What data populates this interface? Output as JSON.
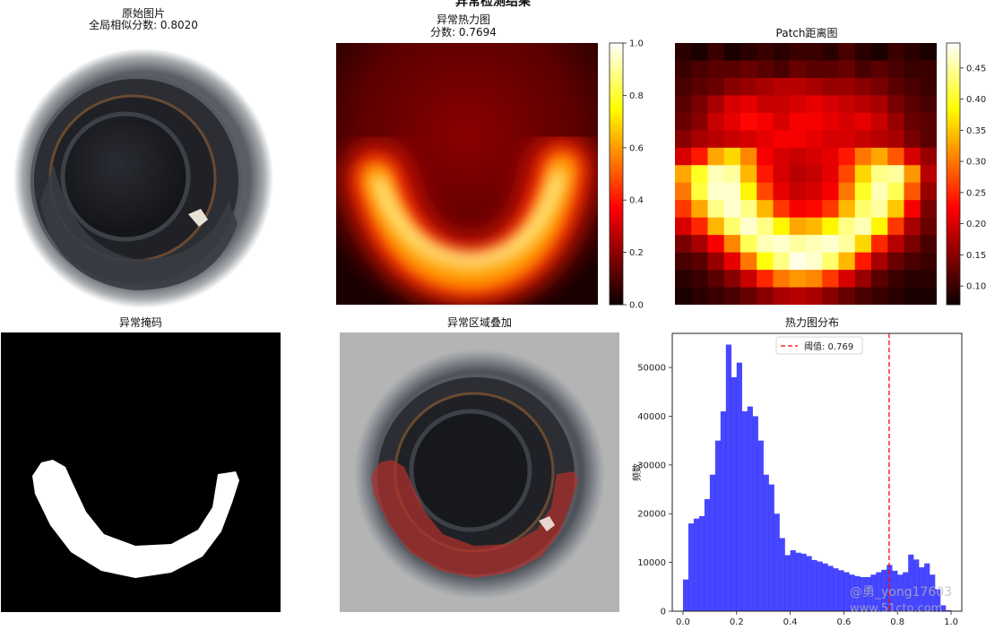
{
  "suptitle": "异常检测结果",
  "panels": {
    "original": {
      "title_line1": "原始图片",
      "title_line2": "全局相似分数: 0.8020"
    },
    "heatmap": {
      "title_line1": "异常热力图",
      "title_line2": "分数: 0.7694",
      "colorbar_ticks": [
        "0.0",
        "0.2",
        "0.4",
        "0.6",
        "0.8",
        "1.0"
      ]
    },
    "patch": {
      "title": "Patch距离图",
      "colorbar_ticks": [
        "0.10",
        "0.15",
        "0.20",
        "0.25",
        "0.30",
        "0.35",
        "0.40",
        "0.45"
      ]
    },
    "mask": {
      "title": "异常掩码"
    },
    "overlay": {
      "title": "异常区域叠加"
    },
    "hist": {
      "title": "热力图分布"
    }
  },
  "watermark": {
    "line1": "@勇_yong17603",
    "line2": "www.51cto.com"
  },
  "chart_data": [
    {
      "type": "heatmap",
      "title": "异常热力图",
      "subtitle": "分数: 0.7694",
      "colormap": "hot",
      "vmin": 0.0,
      "vmax": 1.0,
      "description_of_pattern": "U-shaped high anomaly band across lower half"
    },
    {
      "type": "heatmap",
      "title": "Patch距离图",
      "colormap": "hot",
      "vmin": 0.07,
      "vmax": 0.49,
      "grid": [
        [
          0.09,
          0.08,
          0.1,
          0.08,
          0.09,
          0.1,
          0.09,
          0.1,
          0.1,
          0.09,
          0.11,
          0.09,
          0.08,
          0.1,
          0.09,
          0.08
        ],
        [
          0.1,
          0.11,
          0.12,
          0.12,
          0.13,
          0.12,
          0.11,
          0.13,
          0.12,
          0.12,
          0.13,
          0.11,
          0.12,
          0.11,
          0.1,
          0.1
        ],
        [
          0.11,
          0.12,
          0.13,
          0.15,
          0.16,
          0.17,
          0.18,
          0.18,
          0.17,
          0.16,
          0.16,
          0.15,
          0.14,
          0.12,
          0.11,
          0.1
        ],
        [
          0.12,
          0.14,
          0.17,
          0.2,
          0.21,
          0.19,
          0.19,
          0.2,
          0.21,
          0.2,
          0.19,
          0.18,
          0.17,
          0.14,
          0.12,
          0.11
        ],
        [
          0.13,
          0.15,
          0.19,
          0.21,
          0.23,
          0.22,
          0.2,
          0.22,
          0.22,
          0.21,
          0.2,
          0.21,
          0.19,
          0.16,
          0.13,
          0.12
        ],
        [
          0.15,
          0.17,
          0.18,
          0.19,
          0.2,
          0.21,
          0.22,
          0.22,
          0.21,
          0.2,
          0.2,
          0.19,
          0.18,
          0.17,
          0.14,
          0.12
        ],
        [
          0.2,
          0.24,
          0.33,
          0.36,
          0.31,
          0.22,
          0.2,
          0.19,
          0.2,
          0.21,
          0.24,
          0.3,
          0.33,
          0.28,
          0.2,
          0.16
        ],
        [
          0.33,
          0.4,
          0.46,
          0.45,
          0.34,
          0.24,
          0.2,
          0.18,
          0.19,
          0.21,
          0.27,
          0.36,
          0.44,
          0.45,
          0.32,
          0.18
        ],
        [
          0.3,
          0.41,
          0.47,
          0.47,
          0.38,
          0.27,
          0.21,
          0.19,
          0.2,
          0.22,
          0.3,
          0.4,
          0.46,
          0.42,
          0.28,
          0.16
        ],
        [
          0.26,
          0.33,
          0.44,
          0.47,
          0.44,
          0.34,
          0.26,
          0.22,
          0.23,
          0.26,
          0.34,
          0.43,
          0.45,
          0.35,
          0.22,
          0.14
        ],
        [
          0.2,
          0.25,
          0.34,
          0.43,
          0.47,
          0.44,
          0.38,
          0.33,
          0.34,
          0.38,
          0.44,
          0.46,
          0.38,
          0.26,
          0.17,
          0.13
        ],
        [
          0.14,
          0.17,
          0.22,
          0.31,
          0.42,
          0.46,
          0.47,
          0.45,
          0.46,
          0.47,
          0.45,
          0.36,
          0.25,
          0.18,
          0.14,
          0.11
        ],
        [
          0.11,
          0.12,
          0.16,
          0.21,
          0.3,
          0.39,
          0.44,
          0.48,
          0.47,
          0.43,
          0.34,
          0.24,
          0.17,
          0.13,
          0.11,
          0.1
        ],
        [
          0.09,
          0.1,
          0.12,
          0.15,
          0.19,
          0.25,
          0.3,
          0.32,
          0.31,
          0.26,
          0.2,
          0.16,
          0.12,
          0.1,
          0.09,
          0.09
        ],
        [
          0.08,
          0.09,
          0.1,
          0.11,
          0.13,
          0.15,
          0.17,
          0.18,
          0.17,
          0.15,
          0.13,
          0.11,
          0.1,
          0.09,
          0.08,
          0.08
        ]
      ]
    },
    {
      "type": "bar",
      "title": "热力图分布",
      "ylabel": "频数",
      "xlabel": "",
      "xlim": [
        -0.04,
        1.04
      ],
      "ylim": [
        0,
        57000
      ],
      "x_ticks": [
        "0.0",
        "0.2",
        "0.4",
        "0.6",
        "0.8",
        "1.0"
      ],
      "y_ticks": [
        "0",
        "10000",
        "20000",
        "30000",
        "40000",
        "50000"
      ],
      "bin_width": 0.02,
      "bin_start": 0.0,
      "values": [
        6500,
        18000,
        19000,
        19500,
        23000,
        28000,
        35000,
        41000,
        54700,
        48000,
        51000,
        41000,
        42000,
        40000,
        35000,
        28000,
        26000,
        20000,
        15000,
        11500,
        12500,
        12000,
        11800,
        11300,
        10500,
        10200,
        9800,
        9300,
        8800,
        8400,
        8000,
        7500,
        7200,
        7000,
        7000,
        7500,
        8000,
        8500,
        9500,
        8300,
        7500,
        8000,
        11600,
        10600,
        9000,
        9800,
        7500,
        4500,
        1200,
        200
      ],
      "threshold": 0.769,
      "legend": "阈值: 0.769",
      "legend_position": "top-center",
      "bar_color": "#0000ff",
      "threshold_color": "#ff0000"
    }
  ]
}
